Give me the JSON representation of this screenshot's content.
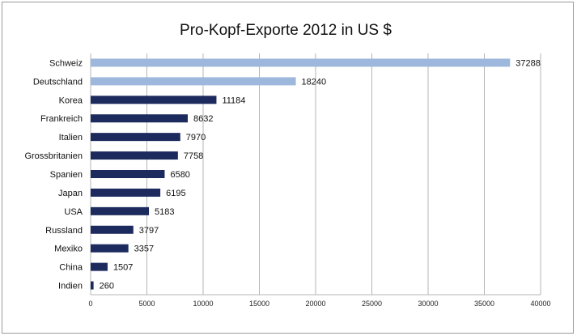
{
  "chart_data": {
    "type": "bar",
    "orientation": "horizontal",
    "title": "Pro-Kopf-Exporte 2012 in US $",
    "categories": [
      "Schweiz",
      "Deutschland",
      "Korea",
      "Frankreich",
      "Italien",
      "Grossbritanien",
      "Spanien",
      "Japan",
      "USA",
      "Russland",
      "Mexiko",
      "China",
      "Indien"
    ],
    "values": [
      37288,
      18240,
      11184,
      8632,
      7970,
      7758,
      6580,
      6195,
      5183,
      3797,
      3357,
      1507,
      260
    ],
    "highlight": [
      "Schweiz",
      "Deutschland"
    ],
    "colors": {
      "highlight": "#9db8dc",
      "default": "#1c2a5e",
      "grid": "#b5b5b5"
    },
    "xlim": [
      0,
      40000
    ],
    "xticks": [
      0,
      5000,
      10000,
      15000,
      20000,
      25000,
      30000,
      35000,
      40000
    ],
    "grid": true,
    "legend": "none"
  }
}
